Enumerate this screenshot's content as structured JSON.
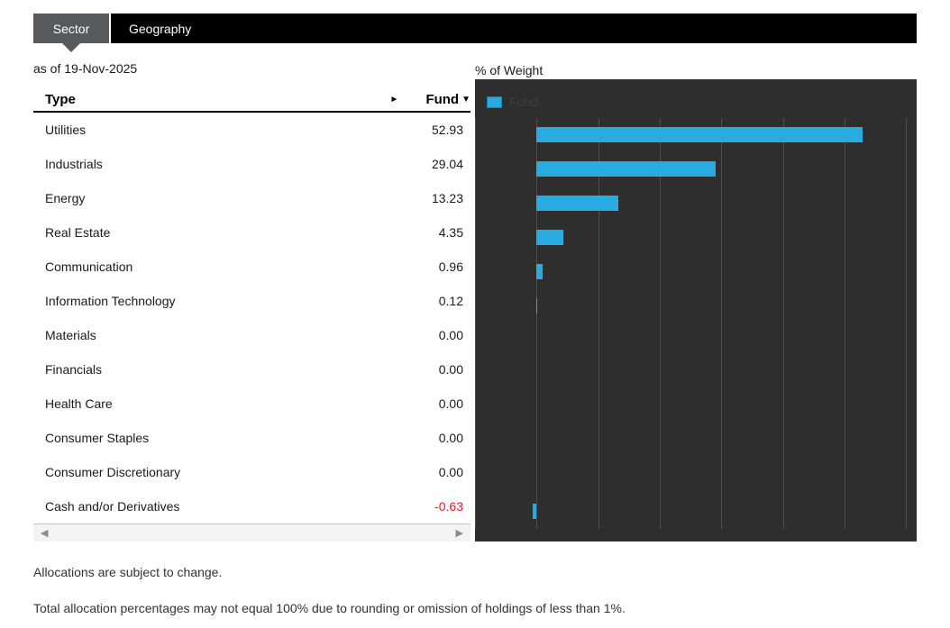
{
  "tabs": {
    "sector_label": "Sector",
    "geography_label": "Geography"
  },
  "as_of_date": "as of 19-Nov-2025",
  "table": {
    "type_header": "Type",
    "fund_header": "Fund",
    "sort_desc_icon": "▼",
    "scroll_hint_icon": "►",
    "scrollbar": {
      "left_icon": "◀",
      "right_icon": "▶"
    },
    "rows": [
      {
        "label": "Utilities",
        "value": "52.93"
      },
      {
        "label": "Industrials",
        "value": "29.04"
      },
      {
        "label": "Energy",
        "value": "13.23"
      },
      {
        "label": "Real Estate",
        "value": "4.35"
      },
      {
        "label": "Communication",
        "value": "0.96"
      },
      {
        "label": "Information Technology",
        "value": "0.12"
      },
      {
        "label": "Materials",
        "value": "0.00"
      },
      {
        "label": "Financials",
        "value": "0.00"
      },
      {
        "label": "Health Care",
        "value": "0.00"
      },
      {
        "label": "Consumer Staples",
        "value": "0.00"
      },
      {
        "label": "Consumer Discretionary",
        "value": "0.00"
      },
      {
        "label": "Cash and/or Derivatives",
        "value": "-0.63"
      }
    ]
  },
  "chart": {
    "title": "% of Weight",
    "legend_label": "Fund"
  },
  "chart_data": {
    "type": "bar",
    "orientation": "horizontal",
    "title": "% of Weight",
    "legend": [
      {
        "name": "Fund",
        "color": "#29abe2"
      }
    ],
    "legend_position": "top-left",
    "categories": [
      "Utilities",
      "Industrials",
      "Energy",
      "Real Estate",
      "Communication",
      "Information Technology",
      "Materials",
      "Financials",
      "Health Care",
      "Consumer Staples",
      "Consumer Discretionary",
      "Cash and/or Derivatives"
    ],
    "values": [
      52.93,
      29.04,
      13.23,
      4.35,
      0.96,
      0.12,
      0.0,
      0.0,
      0.0,
      0.0,
      0.0,
      -0.63
    ],
    "xlim": [
      -10,
      61.7
    ],
    "gridlines": [
      -10,
      0,
      10,
      20,
      30,
      40,
      50,
      60
    ],
    "grid": "vertical-only",
    "axis_tick_labels_visible": false,
    "background": "#2e2e2e"
  },
  "colors": {
    "accent_blue": "#29abe2",
    "negative_red": "#dd2222",
    "tab_active_bg": "#58595b",
    "tab_bar_bg": "#000000",
    "chart_bg": "#2e2e2e",
    "gridline": "#4d4d4d"
  },
  "footnotes": [
    "Allocations are subject to change.",
    "Total allocation percentages may not equal 100% due to rounding or omission of holdings of less than 1%."
  ]
}
